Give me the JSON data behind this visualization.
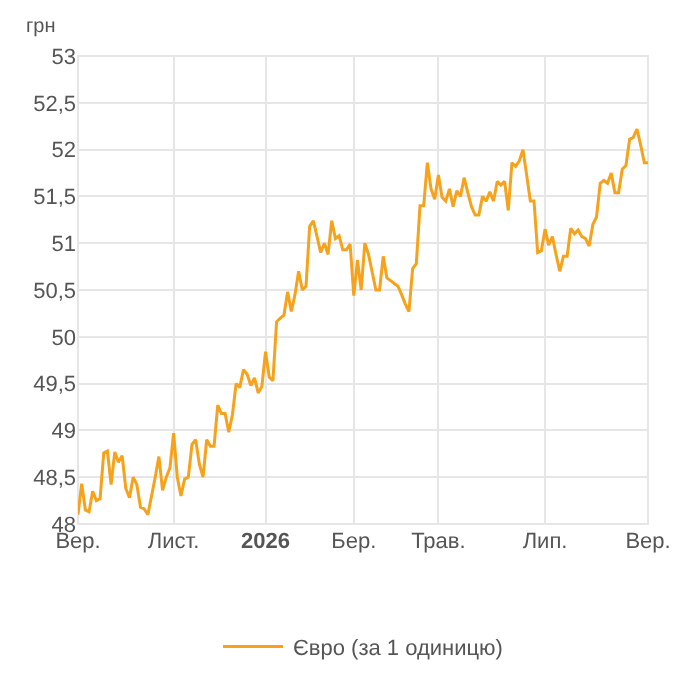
{
  "chart_data": {
    "type": "line",
    "ylabel": "грн",
    "categories": [
      "Вер.",
      null,
      null,
      null,
      null,
      null,
      null,
      null,
      null,
      null,
      null,
      null,
      null,
      null,
      null,
      null,
      null,
      null,
      null,
      null,
      null,
      null,
      null,
      null,
      null,
      null,
      "Лист.",
      null,
      null,
      null,
      null,
      null,
      null,
      null,
      null,
      null,
      null,
      null,
      null,
      null,
      null,
      null,
      null,
      null,
      null,
      null,
      null,
      null,
      null,
      null,
      null,
      "2026",
      null,
      null,
      null,
      null,
      null,
      null,
      null,
      null,
      null,
      null,
      null,
      null,
      null,
      null,
      null,
      null,
      null,
      null,
      null,
      null,
      null,
      null,
      null,
      "Бер.",
      null,
      null,
      null,
      null,
      null,
      null,
      null,
      null,
      null,
      null,
      null,
      null,
      null,
      null,
      null,
      null,
      null,
      null,
      null,
      null,
      null,
      null,
      "Трав.",
      null,
      null,
      null,
      null,
      null,
      null,
      null,
      null,
      null,
      null,
      null,
      null,
      null,
      null,
      null,
      null,
      null,
      null,
      null,
      null,
      null,
      null,
      null,
      null,
      null,
      null,
      null,
      null,
      "Лип.",
      null,
      null,
      null,
      null,
      null,
      null,
      null,
      null,
      null,
      null,
      null,
      null,
      null,
      null,
      null,
      null,
      null,
      null,
      null,
      null,
      null,
      null,
      null,
      null,
      null,
      null,
      null,
      "Вер."
    ],
    "series": [
      {
        "name": "Євро (за 1 одиницю)",
        "color": "#f7a21b",
        "values": [
          48.1,
          48.43,
          48.15,
          48.13,
          48.35,
          48.25,
          48.27,
          48.76,
          48.78,
          48.42,
          48.77,
          48.66,
          48.73,
          48.38,
          48.28,
          48.5,
          48.42,
          48.18,
          48.16,
          48.1,
          48.3,
          48.5,
          48.72,
          48.36,
          48.5,
          48.6,
          48.97,
          48.5,
          48.3,
          48.48,
          48.5,
          48.85,
          48.9,
          48.64,
          48.5,
          48.9,
          48.83,
          48.83,
          49.27,
          49.18,
          49.18,
          48.98,
          49.17,
          49.5,
          49.46,
          49.65,
          49.6,
          49.48,
          49.56,
          49.4,
          49.47,
          49.84,
          49.57,
          49.53,
          50.16,
          50.2,
          50.23,
          50.48,
          50.27,
          50.45,
          50.7,
          50.5,
          50.54,
          51.18,
          51.24,
          51.07,
          50.9,
          51.0,
          50.88,
          51.24,
          51.05,
          51.08,
          50.93,
          50.93,
          50.99,
          50.44,
          50.82,
          50.5,
          51.0,
          50.88,
          50.69,
          50.5,
          50.5,
          50.86,
          50.63,
          50.6,
          50.57,
          50.54,
          50.45,
          50.35,
          50.27,
          50.73,
          50.78,
          51.4,
          51.4,
          51.86,
          51.58,
          51.47,
          51.73,
          51.49,
          51.45,
          51.58,
          51.39,
          51.56,
          51.5,
          51.7,
          51.54,
          51.39,
          51.3,
          51.3,
          51.5,
          51.45,
          51.55,
          51.45,
          51.66,
          51.62,
          51.66,
          51.35,
          51.86,
          51.82,
          51.88,
          52.0,
          51.73,
          51.45,
          51.45,
          50.9,
          50.92,
          51.15,
          50.98,
          51.07,
          50.88,
          50.7,
          50.86,
          50.86,
          51.16,
          51.1,
          51.14,
          51.07,
          51.05,
          50.97,
          51.2,
          51.28,
          51.64,
          51.67,
          51.64,
          51.75,
          51.54,
          51.54,
          51.79,
          51.83,
          52.11,
          52.13,
          52.22,
          52.05,
          51.86,
          51.86
        ]
      }
    ],
    "ylim": [
      48,
      53
    ],
    "yticks": [
      48,
      {
        "value": 48.5,
        "label": "48,5"
      },
      49,
      {
        "value": 49.5,
        "label": "49,5"
      },
      50,
      {
        "value": 50.5,
        "label": "50,5"
      },
      51,
      {
        "value": 51.5,
        "label": "51,5"
      },
      52,
      {
        "value": 52.5,
        "label": "52,5"
      },
      53
    ],
    "grid": true,
    "legend": "bottom",
    "marker": "none",
    "line_style": "solid"
  }
}
